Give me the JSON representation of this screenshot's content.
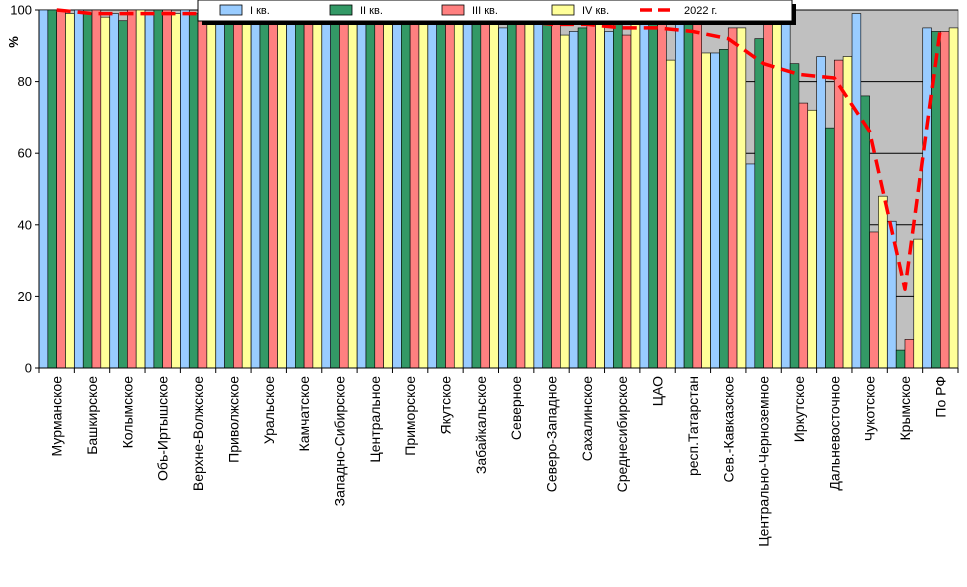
{
  "chart_data": {
    "type": "bar",
    "ylabel": "%",
    "ylim": [
      0,
      100
    ],
    "yticks": [
      0,
      20,
      40,
      60,
      80,
      100
    ],
    "grid": true,
    "legend_position": "top",
    "categories": [
      "Мурманское",
      "Башкирское",
      "Колымское",
      "Обь-Иртышское",
      "Верхне-Волжское",
      "Приволжское",
      "Уральское",
      "Камчатское",
      "Западно-Сибирское",
      "Центральное",
      "Приморское",
      "Якутское",
      "Забайкальское",
      "Северное",
      "Северо-Западное",
      "Сахалинское",
      "Среднесибирское",
      "ЦАО",
      "респ.Татарстан",
      "Сев.-Кавказское",
      "Центрально-Черноземное",
      "Иркутское",
      "Дальневосточное",
      "Чукотское",
      "Крымское",
      "По РФ"
    ],
    "series": [
      {
        "name": "I кв.",
        "type": "bar",
        "color": "#99ccff",
        "values": [
          100,
          100,
          99,
          99,
          100,
          99,
          100,
          99,
          100,
          96,
          99,
          99,
          96,
          95,
          97,
          94,
          94,
          99,
          96,
          88,
          57,
          100,
          87,
          99,
          41,
          95
        ]
      },
      {
        "name": "II кв.",
        "type": "bar",
        "color": "#339966",
        "values": [
          100,
          99,
          97,
          100,
          99,
          99,
          98,
          99,
          97,
          100,
          97,
          96,
          99,
          97,
          99,
          95,
          99,
          97,
          96,
          89,
          92,
          85,
          67,
          76,
          5,
          94
        ]
      },
      {
        "name": "III кв.",
        "type": "bar",
        "color": "#ff8080",
        "values": [
          100,
          100,
          100,
          100,
          100,
          98,
          99,
          99,
          100,
          99,
          99,
          98,
          99,
          98,
          98,
          97,
          93,
          98,
          98,
          95,
          96,
          74,
          86,
          38,
          8,
          94
        ]
      },
      {
        "name": "IV кв.",
        "type": "bar",
        "color": "#ffff99",
        "values": [
          99,
          98,
          100,
          99,
          98,
          99,
          99,
          98,
          99,
          99,
          98,
          97,
          97,
          99,
          93,
          99,
          96,
          86,
          88,
          95,
          97,
          72,
          87,
          48,
          36,
          95
        ]
      },
      {
        "name": "2022 г.",
        "type": "line",
        "color": "#ff0000",
        "values": [
          100,
          99,
          99,
          99,
          99,
          99,
          99,
          99,
          98,
          98,
          98,
          98,
          97,
          97,
          96,
          96,
          95,
          95,
          94,
          92,
          85,
          82,
          81,
          66,
          22,
          95
        ]
      }
    ]
  }
}
